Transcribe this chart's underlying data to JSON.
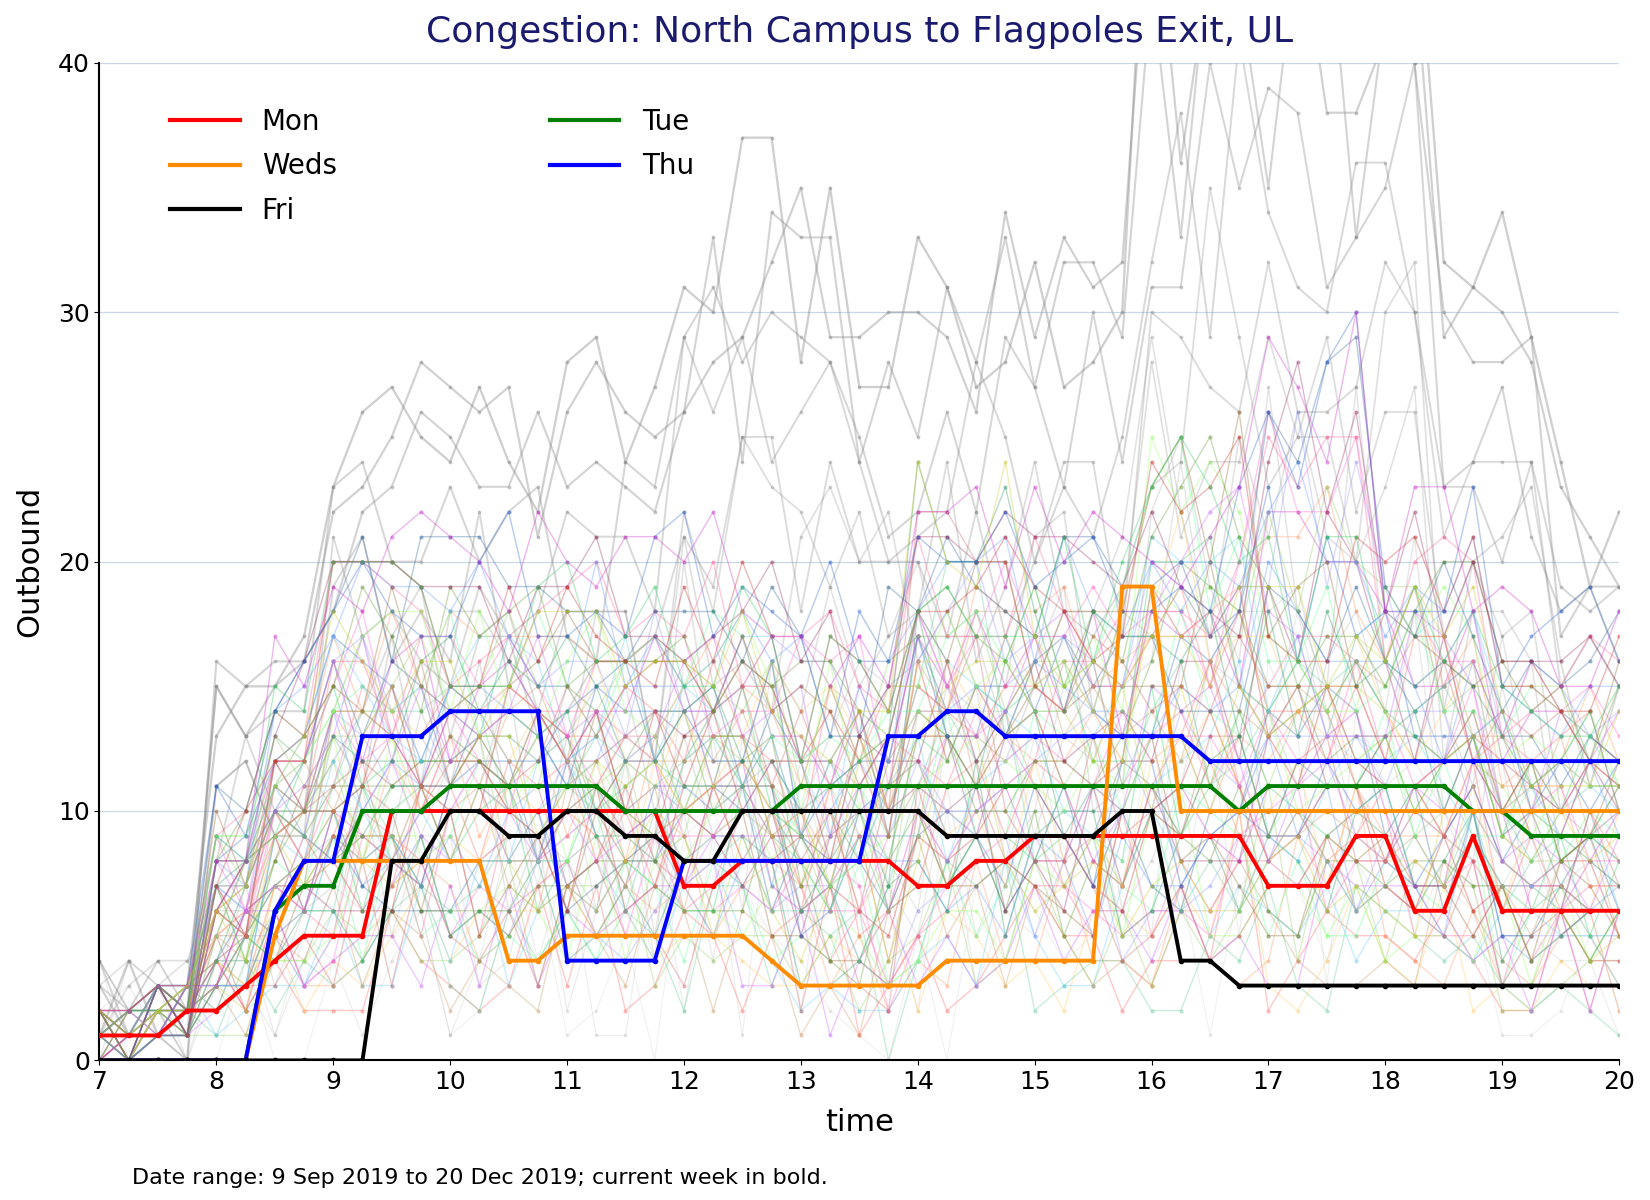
{
  "title": "Congestion: North Campus to Flagpoles Exit, UL",
  "xlabel": "time",
  "ylabel": "Outbound",
  "xlim": [
    7,
    20
  ],
  "ylim": [
    0,
    40
  ],
  "xticks": [
    7,
    8,
    9,
    10,
    11,
    12,
    13,
    14,
    15,
    16,
    17,
    18,
    19,
    20
  ],
  "yticks": [
    0,
    10,
    20,
    30,
    40
  ],
  "annotation": "Date range: 9 Sep 2019 to 20 Dec 2019; current week in bold.",
  "days": [
    "Mon",
    "Tue",
    "Weds",
    "Thu",
    "Fri"
  ],
  "day_colors": {
    "Mon": "#ff0000",
    "Tue": "#008000",
    "Weds": "#ff8c00",
    "Thu": "#0000ff",
    "Fri": "#000000"
  },
  "title_color": "#1a1a6e",
  "grid_color": "#c8d8e8",
  "bold_lw": 2.8,
  "faded_lw": 1.0,
  "faded_alpha": 0.35,
  "marker_size": 3.0
}
